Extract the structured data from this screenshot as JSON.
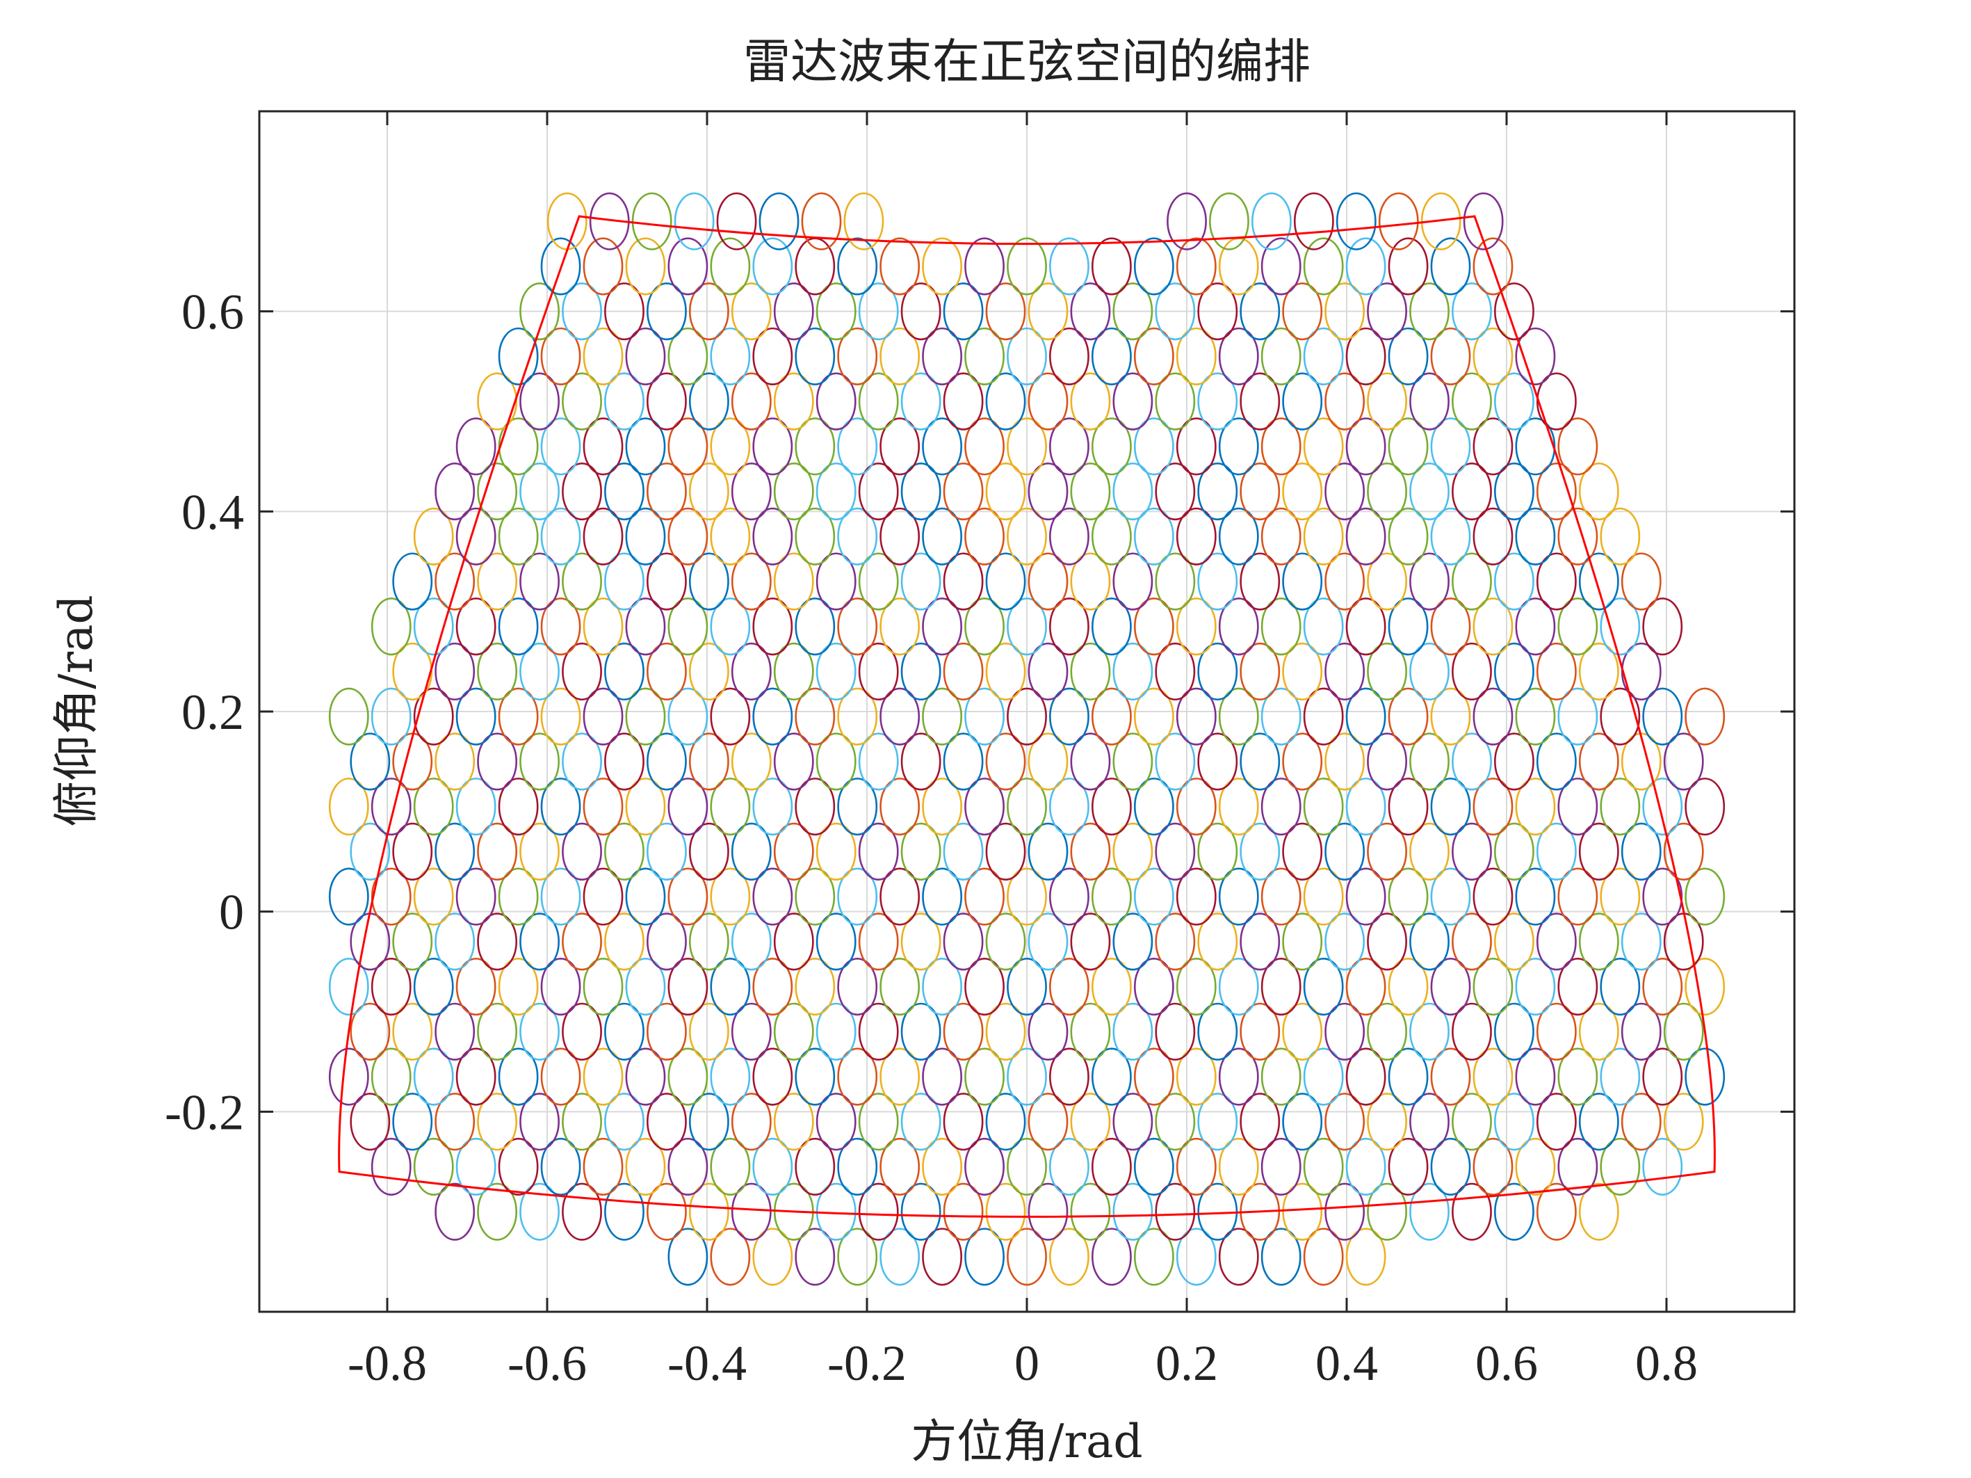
{
  "chart_data": {
    "type": "scatter",
    "title": "雷达波束在正弦空间的编排",
    "xlabel": "方位角/rad",
    "ylabel": "俯仰角/rad",
    "xlim": [
      -0.96,
      0.96
    ],
    "ylim": [
      -0.4,
      0.8
    ],
    "xticks": [
      -0.8,
      -0.6,
      -0.4,
      -0.2,
      0,
      0.2,
      0.4,
      0.6,
      0.8
    ],
    "xtick_labels": [
      "-0.8",
      "-0.6",
      "-0.4",
      "-0.2",
      "0",
      "0.2",
      "0.4",
      "0.6",
      "0.8"
    ],
    "yticks": [
      -0.2,
      0,
      0.2,
      0.4,
      0.6
    ],
    "ytick_labels": [
      "-0.2",
      "0",
      "0.2",
      "0.4",
      "0.6"
    ],
    "grid": true,
    "beams": {
      "shape": "ellipse",
      "semi_axis_x": 0.024,
      "semi_axis_y": 0.028,
      "row_step_y": 0.045,
      "col_step_x": 0.053,
      "odd_row_offset_x": 0.0265,
      "rows": [
        {
          "y": -0.345,
          "x_min": -0.47,
          "x_max": 0.47
        },
        {
          "y": -0.3,
          "x_min": -0.75,
          "x_max": 0.75
        },
        {
          "y": -0.255,
          "x_min": -0.83,
          "x_max": 0.83
        },
        {
          "y": -0.21,
          "x_min": -0.87,
          "x_max": 0.87
        },
        {
          "y": -0.165,
          "x_min": -0.86,
          "x_max": 0.86
        },
        {
          "y": -0.12,
          "x_min": -0.86,
          "x_max": 0.86
        },
        {
          "y": -0.075,
          "x_min": -0.87,
          "x_max": 0.87
        },
        {
          "y": -0.03,
          "x_min": -0.86,
          "x_max": 0.86
        },
        {
          "y": 0.015,
          "x_min": -0.86,
          "x_max": 0.86
        },
        {
          "y": 0.06,
          "x_min": -0.87,
          "x_max": 0.87
        },
        {
          "y": 0.105,
          "x_min": -0.86,
          "x_max": 0.86
        },
        {
          "y": 0.15,
          "x_min": -0.86,
          "x_max": 0.86
        },
        {
          "y": 0.195,
          "x_min": -0.87,
          "x_max": 0.87
        },
        {
          "y": 0.24,
          "x_min": -0.82,
          "x_max": 0.82
        },
        {
          "y": 0.285,
          "x_min": -0.8,
          "x_max": 0.8
        },
        {
          "y": 0.33,
          "x_min": -0.78,
          "x_max": 0.78
        },
        {
          "y": 0.375,
          "x_min": -0.77,
          "x_max": 0.77
        },
        {
          "y": 0.42,
          "x_min": -0.74,
          "x_max": 0.74
        },
        {
          "y": 0.465,
          "x_min": -0.71,
          "x_max": 0.71
        },
        {
          "y": 0.51,
          "x_min": -0.69,
          "x_max": 0.69
        },
        {
          "y": 0.555,
          "x_min": -0.67,
          "x_max": 0.67
        },
        {
          "y": 0.6,
          "x_min": -0.65,
          "x_max": 0.65
        },
        {
          "y": 0.645,
          "x_min": -0.61,
          "x_max": 0.61
        }
      ],
      "top_row": {
        "y": 0.69,
        "groups": [
          [
            -0.575,
            -0.2
          ],
          [
            0.2,
            0.575
          ]
        ]
      }
    },
    "colors": [
      "#0072BD",
      "#D95319",
      "#EDB120",
      "#7E2F8E",
      "#77AC30",
      "#4DBEEE",
      "#A2142F"
    ],
    "boundary": {
      "color": "#ff0000",
      "corners": {
        "top_left": [
          -0.56,
          0.695
        ],
        "top_right": [
          0.56,
          0.695
        ],
        "top_mid": [
          0,
          0.64
        ],
        "right_mid": [
          0.87,
          0.0
        ],
        "bottom_right": [
          0.86,
          -0.26
        ],
        "bottom_mid": [
          0,
          -0.35
        ],
        "bottom_left": [
          -0.86,
          -0.26
        ],
        "left_mid": [
          -0.87,
          0.0
        ]
      }
    }
  }
}
